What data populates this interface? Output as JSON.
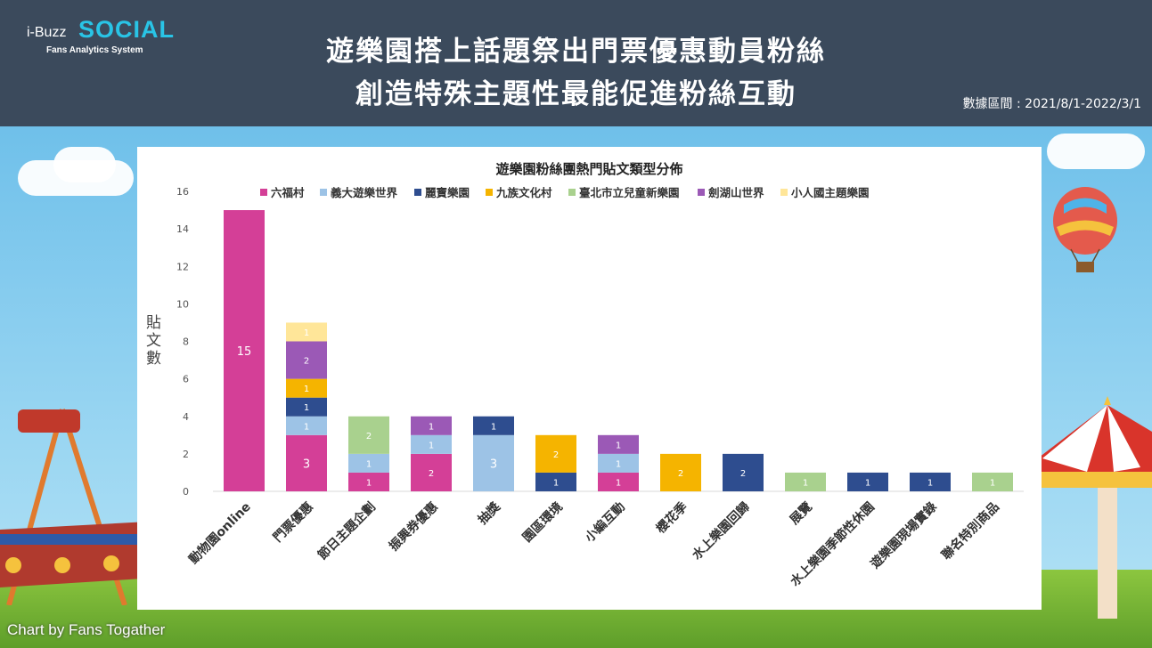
{
  "logo": {
    "prefix": "i-Buzz",
    "brand": "SOCIAL",
    "tagline": "Fans Analytics System"
  },
  "header": {
    "title_line1": "遊樂園搭上話題祭出門票優惠動員粉絲",
    "title_line2": "創造特殊主題性最能促進粉絲互動",
    "date_range": "數據區間 : 2021/8/1-2022/3/1"
  },
  "footer": {
    "credit": "Chart by Fans Togather"
  },
  "chart_data": {
    "type": "bar",
    "stacked": true,
    "title": "遊樂園粉絲團熱門貼文類型分佈",
    "ylabel": "貼文數",
    "xlabel": "",
    "ylim": [
      0,
      16
    ],
    "yticks": [
      0,
      2,
      4,
      6,
      8,
      10,
      12,
      14,
      16
    ],
    "grid": false,
    "legend_position": "top",
    "categories": [
      "動物園online",
      "門票優惠",
      "節日主題企劃",
      "振興券優惠",
      "抽獎",
      "園區環境",
      "小編互動",
      "櫻花季",
      "水上樂園回歸",
      "展覽",
      "水上樂園季節性休園",
      "遊樂園現場實錄",
      "聯名特別商品"
    ],
    "series": [
      {
        "name": "六福村",
        "color": "#d43f97",
        "values": [
          15,
          3,
          1,
          2,
          0,
          0,
          1,
          0,
          0,
          0,
          0,
          0,
          0
        ]
      },
      {
        "name": "義大遊樂世界",
        "color": "#9dc3e6",
        "values": [
          0,
          1,
          1,
          1,
          3,
          0,
          1,
          0,
          0,
          0,
          0,
          0,
          0
        ]
      },
      {
        "name": "麗寶樂園",
        "color": "#2e4d8f",
        "values": [
          0,
          1,
          0,
          0,
          1,
          1,
          0,
          0,
          2,
          0,
          1,
          1,
          0
        ]
      },
      {
        "name": "九族文化村",
        "color": "#f5b400",
        "values": [
          0,
          1,
          0,
          0,
          0,
          2,
          0,
          2,
          0,
          0,
          0,
          0,
          0
        ]
      },
      {
        "name": "臺北市立兒童新樂園",
        "color": "#a9d18e",
        "values": [
          0,
          0,
          2,
          0,
          0,
          0,
          0,
          0,
          0,
          1,
          0,
          0,
          1
        ]
      },
      {
        "name": "劍湖山世界",
        "color": "#9b59b6",
        "values": [
          0,
          2,
          0,
          1,
          0,
          0,
          1,
          0,
          0,
          0,
          0,
          0,
          0
        ]
      },
      {
        "name": "小人國主題樂園",
        "color": "#ffe699",
        "values": [
          0,
          1,
          0,
          0,
          0,
          0,
          0,
          0,
          0,
          0,
          0,
          0,
          0
        ]
      }
    ]
  }
}
